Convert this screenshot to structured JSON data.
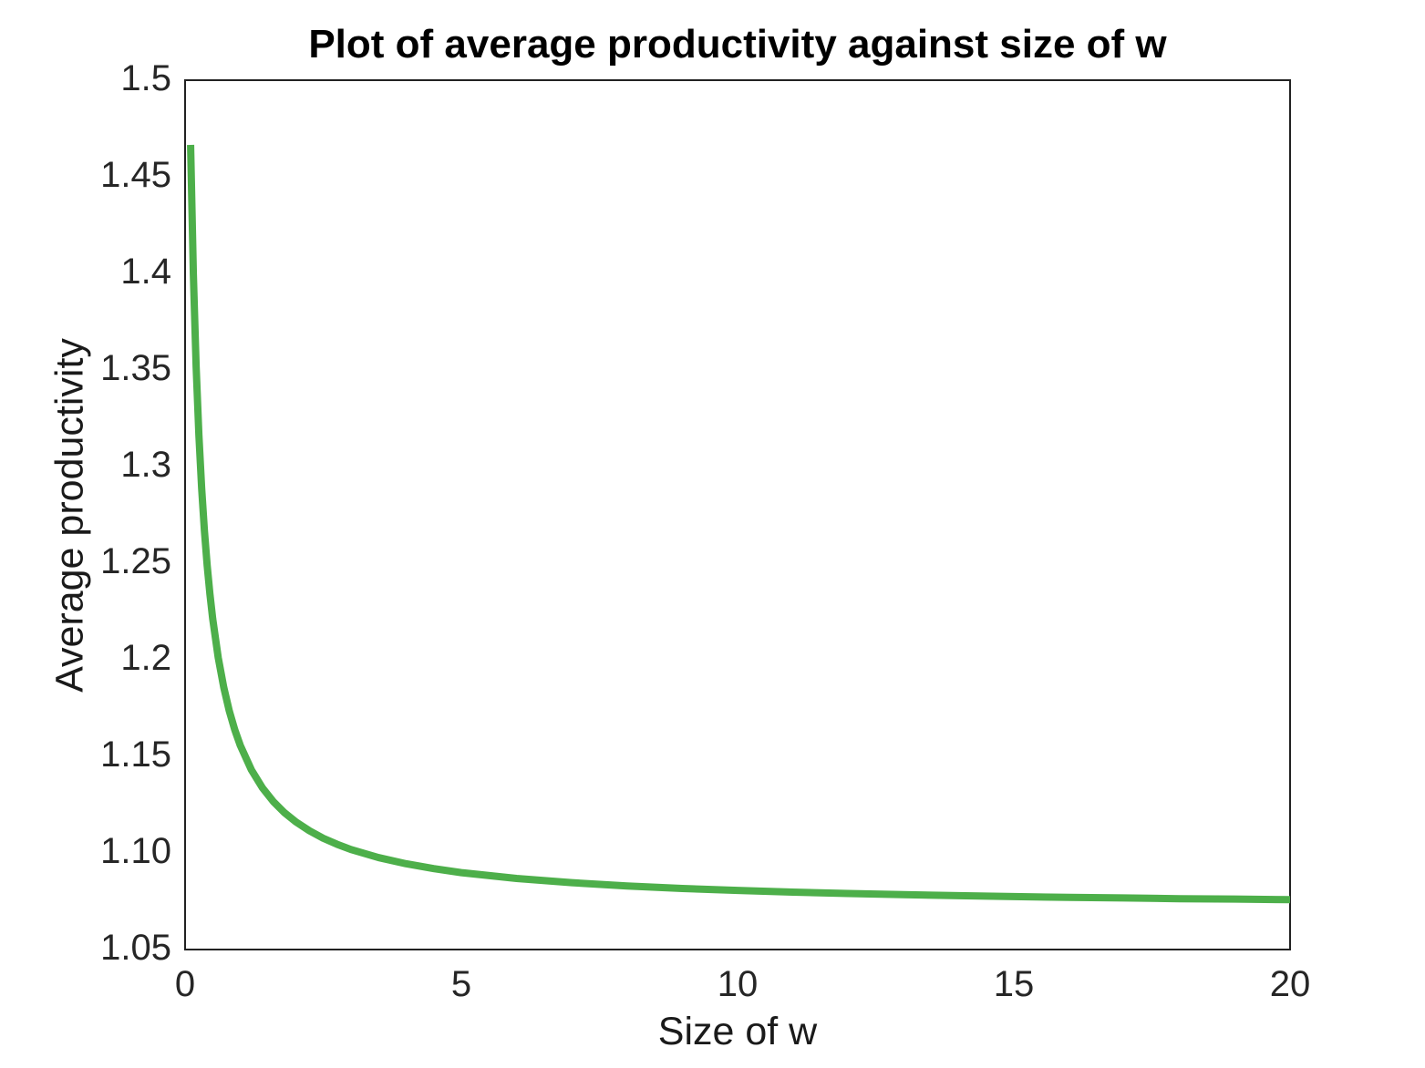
{
  "chart_data": {
    "type": "line",
    "title": "Plot of average productivity against size of w",
    "xlabel": "Size of w",
    "ylabel": "Average productivity",
    "xlim": [
      0,
      20
    ],
    "ylim": [
      1.05,
      1.5
    ],
    "xticks": [
      0,
      5,
      10,
      15,
      20
    ],
    "yticks": [
      1.05,
      1.1,
      1.15,
      1.2,
      1.25,
      1.3,
      1.35,
      1.4,
      1.45,
      1.5
    ],
    "grid": false,
    "legend": "none",
    "axis_color": "#222222",
    "tick_label_color": "#262626",
    "background_color": "#ffffff",
    "series": [
      {
        "name": "average productivity",
        "color": "#4daf4a",
        "line_width": 8,
        "x": [
          0.1,
          0.15,
          0.2,
          0.25,
          0.3,
          0.35,
          0.4,
          0.45,
          0.5,
          0.6,
          0.7,
          0.8,
          0.9,
          1.0,
          1.2,
          1.4,
          1.6,
          1.8,
          2.0,
          2.25,
          2.5,
          2.75,
          3.0,
          3.5,
          4.0,
          4.5,
          5.0,
          6.0,
          7.0,
          8.0,
          9.0,
          10,
          11,
          12,
          13,
          14,
          15,
          16,
          17,
          18,
          19,
          20
        ],
        "y": [
          1.4665,
          1.3995,
          1.3519,
          1.3163,
          1.2888,
          1.2668,
          1.2488,
          1.2339,
          1.2212,
          1.2011,
          1.1857,
          1.1735,
          1.1637,
          1.1556,
          1.143,
          1.1337,
          1.1265,
          1.1208,
          1.1162,
          1.1115,
          1.1076,
          1.1045,
          1.1018,
          1.0976,
          1.0944,
          1.0919,
          1.0898,
          1.0868,
          1.0846,
          1.0829,
          1.0816,
          1.0806,
          1.0797,
          1.079,
          1.0784,
          1.0779,
          1.0774,
          1.077,
          1.0767,
          1.0763,
          1.0761,
          1.0758
        ]
      }
    ]
  }
}
